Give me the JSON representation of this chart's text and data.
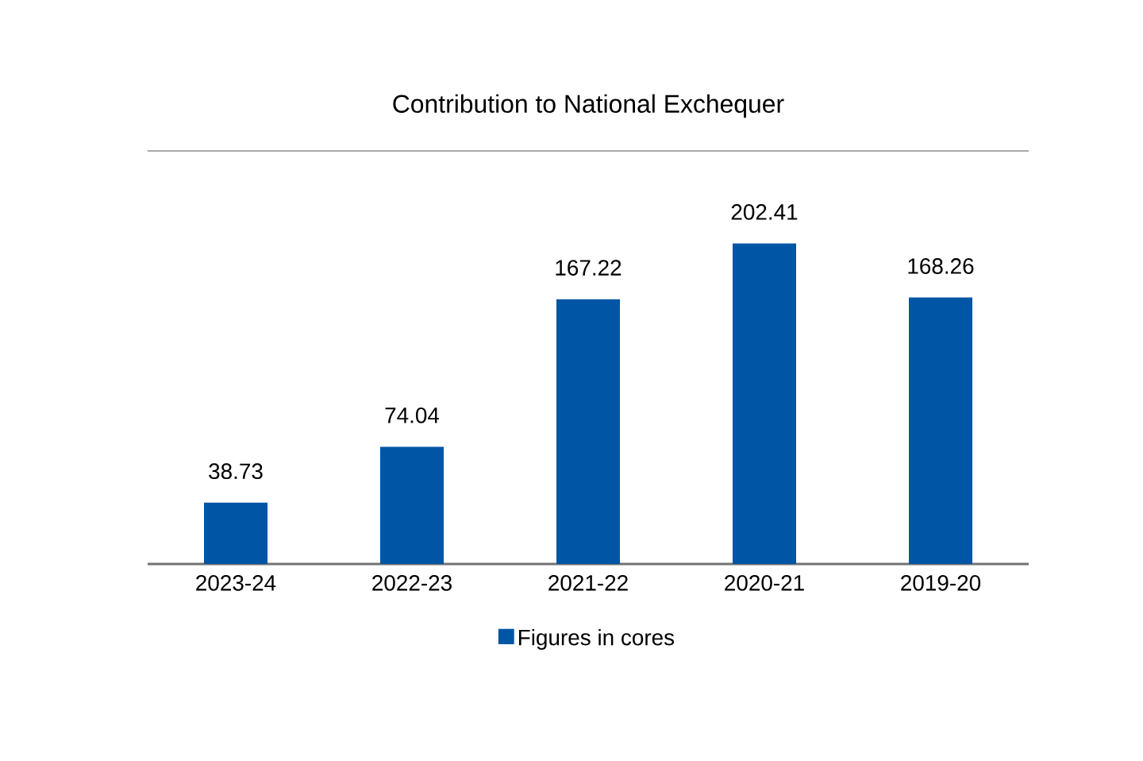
{
  "chart_data": {
    "type": "bar",
    "title": "Contribution to National Exchequer",
    "categories": [
      "2023-24",
      "2022-23",
      "2021-22",
      "2020-21",
      "2019-20"
    ],
    "series": [
      {
        "name": "Figures in cores",
        "color": "#0055a4",
        "values": [
          38.73,
          74.04,
          167.22,
          202.41,
          168.26
        ]
      }
    ],
    "data_labels": true,
    "legend": "bottom"
  }
}
